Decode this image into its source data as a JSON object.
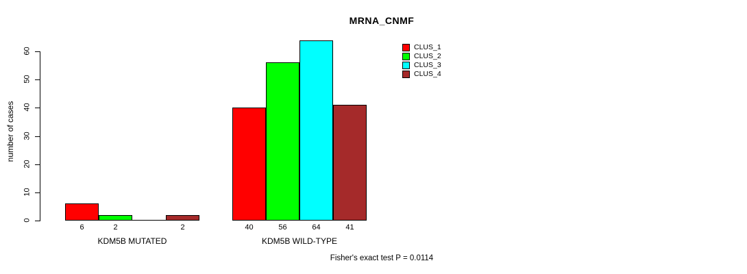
{
  "title": "MRNA_CNMF",
  "y_axis": {
    "label": "number of cases",
    "ticks": [
      0,
      10,
      20,
      30,
      40,
      50,
      60
    ]
  },
  "legend": {
    "items": [
      {
        "label": "CLUS_1",
        "color": "#FF0000"
      },
      {
        "label": "CLUS_2",
        "color": "#00FF00"
      },
      {
        "label": "CLUS_3",
        "color": "#00FFFF"
      },
      {
        "label": "CLUS_4",
        "color": "#A52A2A"
      }
    ]
  },
  "footnote": "Fisher's exact test P = 0.0114",
  "chart_data": {
    "type": "bar",
    "title": "MRNA_CNMF",
    "ylabel": "number of cases",
    "xlabel": "",
    "ylim": [
      0,
      64
    ],
    "yticks": [
      0,
      10,
      20,
      30,
      40,
      50,
      60
    ],
    "grid": false,
    "legend_position": "top-right",
    "series": [
      "CLUS_1",
      "CLUS_2",
      "CLUS_3",
      "CLUS_4"
    ],
    "series_colors": [
      "#FF0000",
      "#00FF00",
      "#00FFFF",
      "#A52A2A"
    ],
    "groups": [
      {
        "label": "KDM5B MUTATED",
        "values": [
          6,
          2,
          0,
          2
        ],
        "bar_labels": [
          "6",
          "2",
          "",
          "2"
        ]
      },
      {
        "label": "KDM5B WILD-TYPE",
        "values": [
          40,
          56,
          64,
          41
        ],
        "bar_labels": [
          "40",
          "56",
          "64",
          "41"
        ]
      }
    ],
    "footnote": "Fisher's exact test P = 0.0114"
  }
}
